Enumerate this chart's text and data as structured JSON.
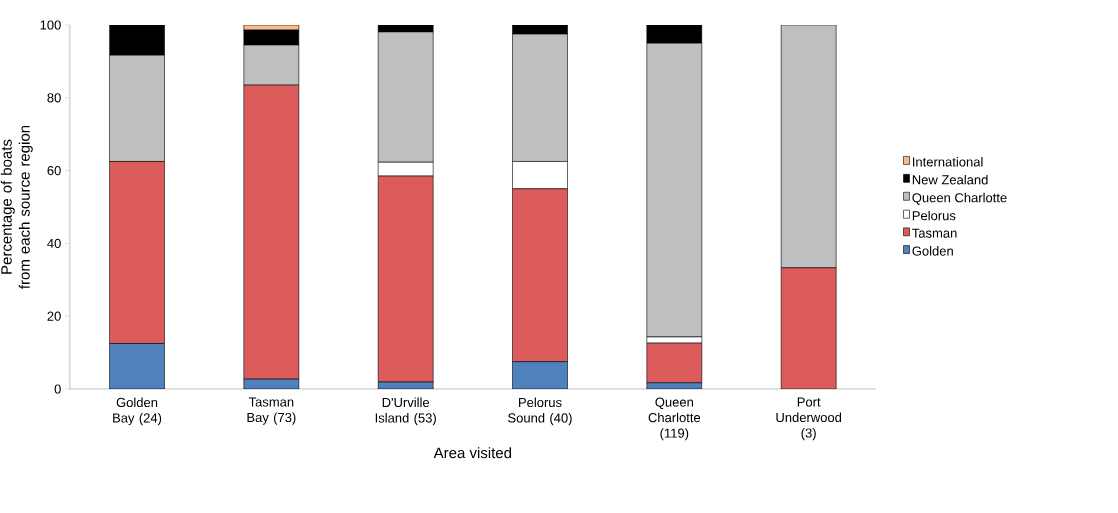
{
  "chart_data": {
    "type": "bar",
    "stacked": true,
    "xlabel": "Area visited",
    "ylabel": "Percentage of boats from each source region",
    "categories": [
      "Golden Bay (24)",
      "Tasman Bay (73)",
      "D'Urville Island (53)",
      "Pelorus Sound (40)",
      "Queen Charlotte (119)",
      "Port Underwood (3)"
    ],
    "series": [
      {
        "name": "Golden",
        "color": "#4f81bd",
        "values": [
          12.5,
          2.7,
          1.9,
          7.5,
          1.7,
          0
        ]
      },
      {
        "name": "Tasman",
        "color": "#dc5c5c",
        "values": [
          50.0,
          80.8,
          56.6,
          47.5,
          10.9,
          33.3
        ]
      },
      {
        "name": "Pelorus",
        "color": "#ffffff",
        "values": [
          0,
          0,
          3.8,
          7.5,
          1.7,
          0
        ]
      },
      {
        "name": "Queen Charlotte",
        "color": "#bfbfbf",
        "values": [
          29.2,
          11.0,
          35.8,
          35.0,
          80.7,
          66.7
        ]
      },
      {
        "name": "New Zealand",
        "color": "#000000",
        "values": [
          8.3,
          4.1,
          1.9,
          2.5,
          5.0,
          0
        ]
      },
      {
        "name": "International",
        "color": "#f9b98a",
        "values": [
          0,
          1.4,
          0,
          0,
          0,
          0
        ]
      }
    ],
    "ylim": [
      0,
      100
    ],
    "yticks": [
      0,
      20,
      40,
      60,
      80,
      100
    ],
    "legend": "right",
    "grid": false
  }
}
